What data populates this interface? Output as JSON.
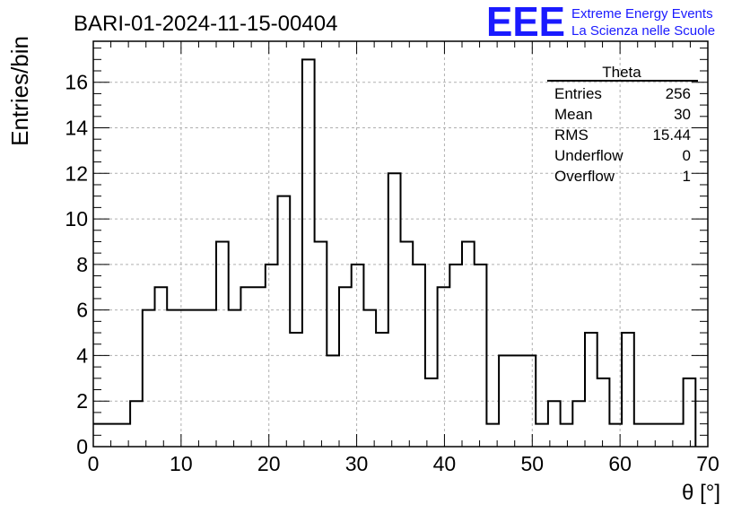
{
  "title": "BARI-01-2024-11-15-00404",
  "logo": {
    "letters": "EEE",
    "line1": "Extreme Energy Events",
    "line2": "La Scienza nelle Scuole",
    "color": "#1a1aff"
  },
  "stats": {
    "name": "Theta",
    "rows": [
      {
        "label": "Entries",
        "value": "256"
      },
      {
        "label": "Mean",
        "value": "30"
      },
      {
        "label": "RMS",
        "value": "15.44"
      },
      {
        "label": "Underflow",
        "value": "0"
      },
      {
        "label": "Overflow",
        "value": "1"
      }
    ]
  },
  "chart_data": {
    "type": "bar",
    "subtype": "histogram-step",
    "xlabel": "θ [°]",
    "ylabel": "Entries/bin",
    "xlim": [
      0,
      70
    ],
    "ylim": [
      0,
      17.8
    ],
    "grid": true,
    "x_ticks": [
      0,
      10,
      20,
      30,
      40,
      50,
      60,
      70
    ],
    "y_ticks": [
      0,
      2,
      4,
      6,
      8,
      10,
      12,
      14,
      16
    ],
    "bin_edges": [
      0,
      1.4,
      2.8,
      4.2,
      5.6,
      7,
      8.4,
      9.8,
      11.2,
      12.6,
      14,
      15.4,
      16.8,
      18.2,
      19.6,
      21,
      22.4,
      23.8,
      25.2,
      26.6,
      28,
      29.4,
      30.8,
      32.2,
      33.6,
      35,
      36.4,
      37.8,
      39.2,
      40.6,
      42,
      43.4,
      44.8,
      46.2,
      47.6,
      49,
      50.4,
      51.8,
      53.2,
      54.6,
      56,
      57.4,
      58.8,
      60.2,
      61.6,
      63,
      64.4,
      65.8,
      67.2,
      68.6
    ],
    "values": [
      1,
      1,
      1,
      2,
      6,
      7,
      6,
      6,
      6,
      6,
      9,
      6,
      7,
      7,
      8,
      11,
      5,
      17,
      9,
      4,
      7,
      8,
      6,
      5,
      12,
      9,
      8,
      3,
      7,
      8,
      9,
      8,
      1,
      4,
      4,
      4,
      1,
      2,
      1,
      2,
      5,
      3,
      1,
      5,
      1,
      1,
      1,
      1,
      3
    ]
  }
}
